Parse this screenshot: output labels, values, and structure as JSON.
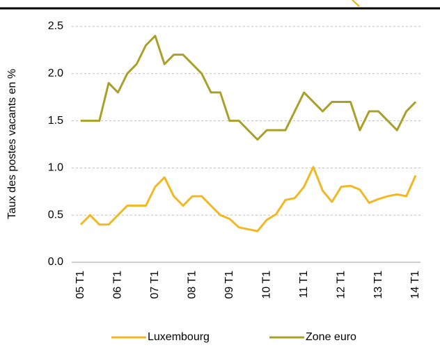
{
  "chart_data": {
    "type": "line",
    "ylabel": "Taux des postes vacants en %",
    "categories": [
      "05 T1",
      null,
      null,
      null,
      "06 T1",
      null,
      null,
      null,
      "07 T1",
      null,
      null,
      null,
      "08 T1",
      null,
      null,
      null,
      "09 T1",
      null,
      null,
      null,
      "10 T1",
      null,
      null,
      null,
      "11 T1",
      null,
      null,
      null,
      "12 T1",
      null,
      null,
      null,
      "13 T1",
      null,
      null,
      null,
      "14 T1"
    ],
    "series": [
      {
        "name": "Luxembourg",
        "color": "#f2b824",
        "values": [
          0.4,
          0.5,
          0.4,
          0.4,
          0.5,
          0.6,
          0.6,
          0.6,
          0.8,
          0.9,
          0.7,
          0.6,
          0.7,
          0.7,
          0.6,
          0.5,
          0.46,
          0.37,
          0.35,
          0.33,
          0.45,
          0.51,
          0.66,
          0.68,
          0.8,
          1.01,
          0.76,
          0.64,
          0.8,
          0.81,
          0.77,
          0.63,
          0.67,
          0.7,
          0.72,
          0.7,
          0.92
        ]
      },
      {
        "name": "Zone euro",
        "color": "#a9a02a",
        "values": [
          1.5,
          1.5,
          1.5,
          1.9,
          1.8,
          2.0,
          2.1,
          2.3,
          2.4,
          2.1,
          2.2,
          2.2,
          2.1,
          2.0,
          1.8,
          1.8,
          1.5,
          1.5,
          1.4,
          1.3,
          1.4,
          1.4,
          1.4,
          1.6,
          1.8,
          1.7,
          1.6,
          1.7,
          1.7,
          1.7,
          1.4,
          1.6,
          1.6,
          1.5,
          1.4,
          1.6,
          1.7
        ]
      }
    ],
    "ylim": [
      0,
      2.5
    ],
    "yticks": [
      {
        "value": 0,
        "label": "0.0"
      },
      0.5,
      {
        "value": 1,
        "label": "1.0"
      },
      1.5,
      {
        "value": 2,
        "label": "2.0"
      },
      2.5
    ],
    "grid": true,
    "legend": "bottom"
  }
}
